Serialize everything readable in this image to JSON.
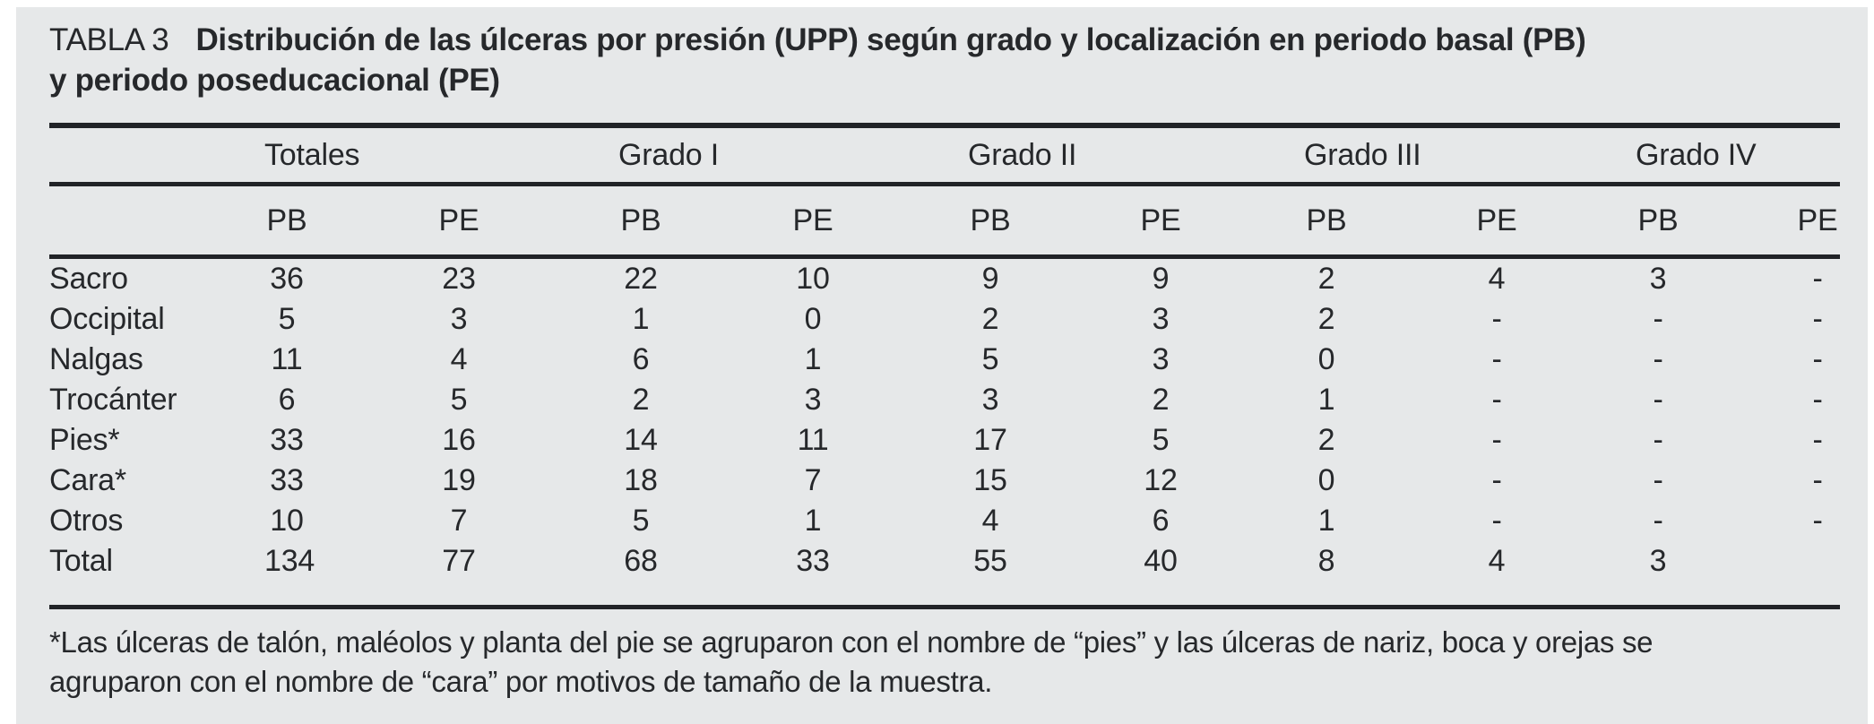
{
  "colors": {
    "page_background": "#ffffff",
    "panel_background": "#e6e8e9",
    "text": "#26282b",
    "rule": "#212327"
  },
  "table": {
    "label": "TABLA 3",
    "caption_line1": "Distribución de las úlceras por presión (UPP) según grado y localización en periodo basal (PB)",
    "caption_line2": "y periodo poseducacional (PE)",
    "groups": [
      {
        "label": "Totales"
      },
      {
        "label": "Grado I"
      },
      {
        "label": "Grado II"
      },
      {
        "label": "Grado III"
      },
      {
        "label": "Grado IV"
      }
    ],
    "subheaders": [
      "PB",
      "PE",
      "PB",
      "PE",
      "PB",
      "PE",
      "PB",
      "PE",
      "PB",
      "PE"
    ],
    "rows": [
      {
        "label": "Sacro",
        "values": [
          "36",
          "23",
          "22",
          "10",
          "9",
          "9",
          "2",
          "4",
          "3",
          "-"
        ]
      },
      {
        "label": "Occipital",
        "values": [
          "5",
          "3",
          "1",
          "0",
          "2",
          "3",
          "2",
          "-",
          "-",
          "-"
        ]
      },
      {
        "label": "Nalgas",
        "values": [
          "11",
          "4",
          "6",
          "1",
          "5",
          "3",
          "0",
          "-",
          "-",
          "-"
        ]
      },
      {
        "label": "Trocánter",
        "values": [
          "6",
          "5",
          "2",
          "3",
          "3",
          "2",
          "1",
          "-",
          "-",
          "-"
        ]
      },
      {
        "label": "Pies*",
        "values": [
          "33",
          "16",
          "14",
          "11",
          "17",
          "5",
          "2",
          "-",
          "-",
          "-"
        ]
      },
      {
        "label": "Cara*",
        "values": [
          "33",
          "19",
          "18",
          "7",
          "15",
          "12",
          "0",
          "-",
          "-",
          "-"
        ]
      },
      {
        "label": "Otros",
        "values": [
          "10",
          "7",
          "5",
          "1",
          "4",
          "6",
          "1",
          "-",
          "-",
          "-"
        ]
      },
      {
        "label": "Total",
        "values": [
          "134",
          "77",
          "68",
          "33",
          "55",
          "40",
          "8",
          "4",
          "3",
          ""
        ]
      }
    ],
    "footnote_line1": "*Las úlceras de talón, maléolos y planta del pie se agruparon con el nombre de “pies” y las úlceras de nariz, boca y orejas se",
    "footnote_line2": "agruparon con el nombre de “cara” por motivos de tamaño de la muestra."
  }
}
